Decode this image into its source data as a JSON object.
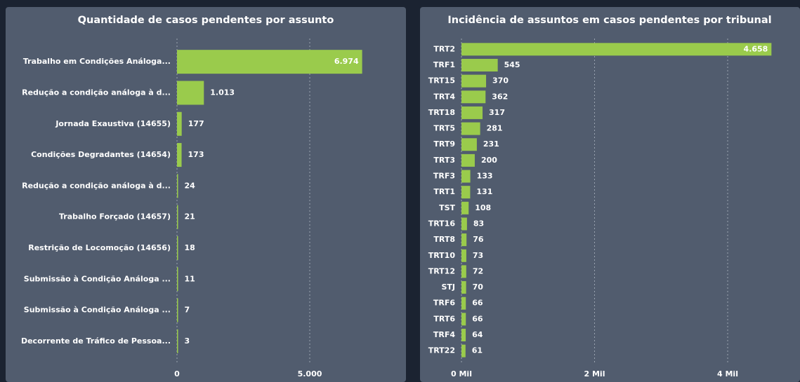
{
  "chart_data": [
    {
      "type": "bar",
      "orientation": "horizontal",
      "title": "Quantidade de casos pendentes por assunto",
      "categories": [
        "Trabalho em Condições Análoga...",
        "Redução a condição análoga à d...",
        "Jornada Exaustiva (14655)",
        "Condições Degradantes (14654)",
        "Redução a condição análoga à d...",
        "Trabalho Forçado (14657)",
        "Restrição de Locomoção (14656)",
        "Submissão à Condição Análoga ...",
        "Submissão à Condição Análoga ...",
        "Decorrente de Tráfico de Pessoa..."
      ],
      "values": [
        6974,
        1013,
        177,
        173,
        24,
        21,
        18,
        11,
        7,
        3
      ],
      "value_labels": [
        "6.974",
        "1.013",
        "177",
        "173",
        "24",
        "21",
        "18",
        "11",
        "7",
        "3"
      ],
      "color": "#9acb4c",
      "xlim": [
        0,
        8000
      ],
      "xticks": [
        0,
        {
          "value": 5000,
          "label": "5.000"
        }
      ],
      "grid": true
    },
    {
      "type": "bar",
      "orientation": "horizontal",
      "title": "Incidência de assuntos em casos pendentes por tribunal",
      "categories": [
        "TRT2",
        "TRF1",
        "TRT15",
        "TRT4",
        "TRT18",
        "TRT5",
        "TRT9",
        "TRT3",
        "TRF3",
        "TRT1",
        "TST",
        "TRT16",
        "TRT8",
        "TRT10",
        "TRT12",
        "STJ",
        "TRF6",
        "TRT6",
        "TRF4",
        "TRT22"
      ],
      "values": [
        4658,
        545,
        370,
        362,
        317,
        281,
        231,
        200,
        133,
        131,
        108,
        83,
        76,
        73,
        72,
        70,
        66,
        66,
        64,
        61
      ],
      "value_labels": [
        "4.658",
        "545",
        "370",
        "362",
        "317",
        "281",
        "231",
        "200",
        "133",
        "131",
        "108",
        "83",
        "76",
        "73",
        "72",
        "70",
        "66",
        "66",
        "64",
        "61"
      ],
      "color": "#9acb4c",
      "xlim": [
        0,
        4800
      ],
      "xticks": [
        {
          "value": 0,
          "label": "0 Mil"
        },
        {
          "value": 2000,
          "label": "2 Mil"
        },
        {
          "value": 4000,
          "label": "4 Mil"
        }
      ],
      "grid": true
    }
  ]
}
